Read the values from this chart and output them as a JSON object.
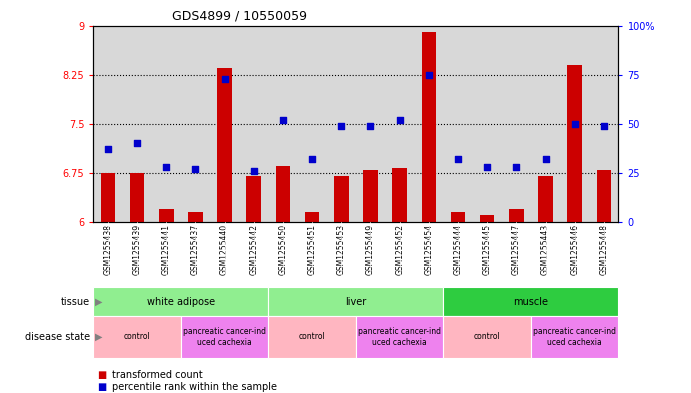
{
  "title": "GDS4899 / 10550059",
  "samples": [
    "GSM1255438",
    "GSM1255439",
    "GSM1255441",
    "GSM1255437",
    "GSM1255440",
    "GSM1255442",
    "GSM1255450",
    "GSM1255451",
    "GSM1255453",
    "GSM1255449",
    "GSM1255452",
    "GSM1255454",
    "GSM1255444",
    "GSM1255445",
    "GSM1255447",
    "GSM1255443",
    "GSM1255446",
    "GSM1255448"
  ],
  "red_values": [
    6.75,
    6.75,
    6.2,
    6.15,
    8.35,
    6.7,
    6.85,
    6.15,
    6.7,
    6.8,
    6.82,
    8.9,
    6.15,
    6.1,
    6.2,
    6.7,
    8.4,
    6.8
  ],
  "blue_percentiles": [
    37,
    40,
    28,
    27,
    73,
    26,
    52,
    32,
    49,
    49,
    52,
    75,
    32,
    28,
    28,
    32,
    50,
    49
  ],
  "ylim_left": [
    6,
    9
  ],
  "ylim_right": [
    0,
    100
  ],
  "yticks_left": [
    6,
    6.75,
    7.5,
    8.25,
    9
  ],
  "yticks_right": [
    0,
    25,
    50,
    75,
    100
  ],
  "hlines": [
    6.75,
    7.5,
    8.25
  ],
  "tissue_groups": [
    {
      "label": "white adipose",
      "start": 0,
      "end": 5,
      "color": "#90EE90"
    },
    {
      "label": "liver",
      "start": 6,
      "end": 11,
      "color": "#90EE90"
    },
    {
      "label": "muscle",
      "start": 12,
      "end": 17,
      "color": "#2ECC40"
    }
  ],
  "disease_groups": [
    {
      "label": "control",
      "start": 0,
      "end": 2,
      "color": "#FFB6C1"
    },
    {
      "label": "pancreatic cancer-ind\nuced cachexia",
      "start": 3,
      "end": 5,
      "color": "#EE82EE"
    },
    {
      "label": "control",
      "start": 6,
      "end": 8,
      "color": "#FFB6C1"
    },
    {
      "label": "pancreatic cancer-ind\nuced cachexia",
      "start": 9,
      "end": 11,
      "color": "#EE82EE"
    },
    {
      "label": "control",
      "start": 12,
      "end": 14,
      "color": "#FFB6C1"
    },
    {
      "label": "pancreatic cancer-ind\nuced cachexia",
      "start": 15,
      "end": 17,
      "color": "#EE82EE"
    }
  ],
  "bar_color": "#CC0000",
  "dot_color": "#0000CC",
  "bg_color": "#D8D8D8",
  "bar_width": 0.5,
  "tissue_label_color": "#808080",
  "disease_label_color": "#808080"
}
